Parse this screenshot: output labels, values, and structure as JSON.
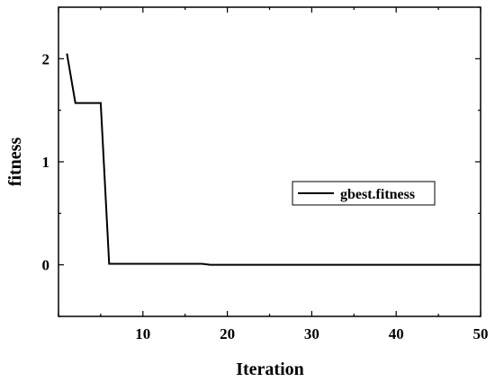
{
  "chart_data": {
    "type": "line",
    "xlabel": "Iteration",
    "ylabel": "fitness",
    "xlim": [
      0,
      50
    ],
    "ylim": [
      -0.5,
      2.5
    ],
    "xticks": [
      0,
      10,
      20,
      30,
      40,
      50
    ],
    "xtick_labels": [
      "",
      "10",
      "20",
      "30",
      "40",
      "50"
    ],
    "yticks": [
      0,
      1,
      2
    ],
    "ytick_labels": [
      "0",
      "1",
      "2"
    ],
    "grid": false,
    "legend_position": "right",
    "series": [
      {
        "name": "gbest.fitness",
        "color": "#000000",
        "x": [
          1,
          2,
          3,
          4,
          5,
          6,
          7,
          8,
          9,
          10,
          11,
          12,
          13,
          14,
          15,
          16,
          17,
          18,
          19,
          20,
          21,
          22,
          23,
          24,
          25,
          26,
          27,
          28,
          29,
          30,
          31,
          32,
          33,
          34,
          35,
          36,
          37,
          38,
          39,
          40,
          41,
          42,
          43,
          44,
          45,
          46,
          47,
          48,
          49,
          50
        ],
        "y": [
          2.05,
          1.57,
          1.57,
          1.57,
          1.57,
          0.01,
          0.01,
          0.01,
          0.01,
          0.01,
          0.01,
          0.01,
          0.01,
          0.01,
          0.01,
          0.01,
          0.01,
          0.0,
          0.0,
          0.0,
          0.0,
          0.0,
          0.0,
          0.0,
          0.0,
          0.0,
          0.0,
          0.0,
          0.0,
          0.0,
          0.0,
          0.0,
          0.0,
          0.0,
          0.0,
          0.0,
          0.0,
          0.0,
          0.0,
          0.0,
          0.0,
          0.0,
          0.0,
          0.0,
          0.0,
          0.0,
          0.0,
          0.0,
          0.0,
          0.0
        ]
      }
    ]
  }
}
